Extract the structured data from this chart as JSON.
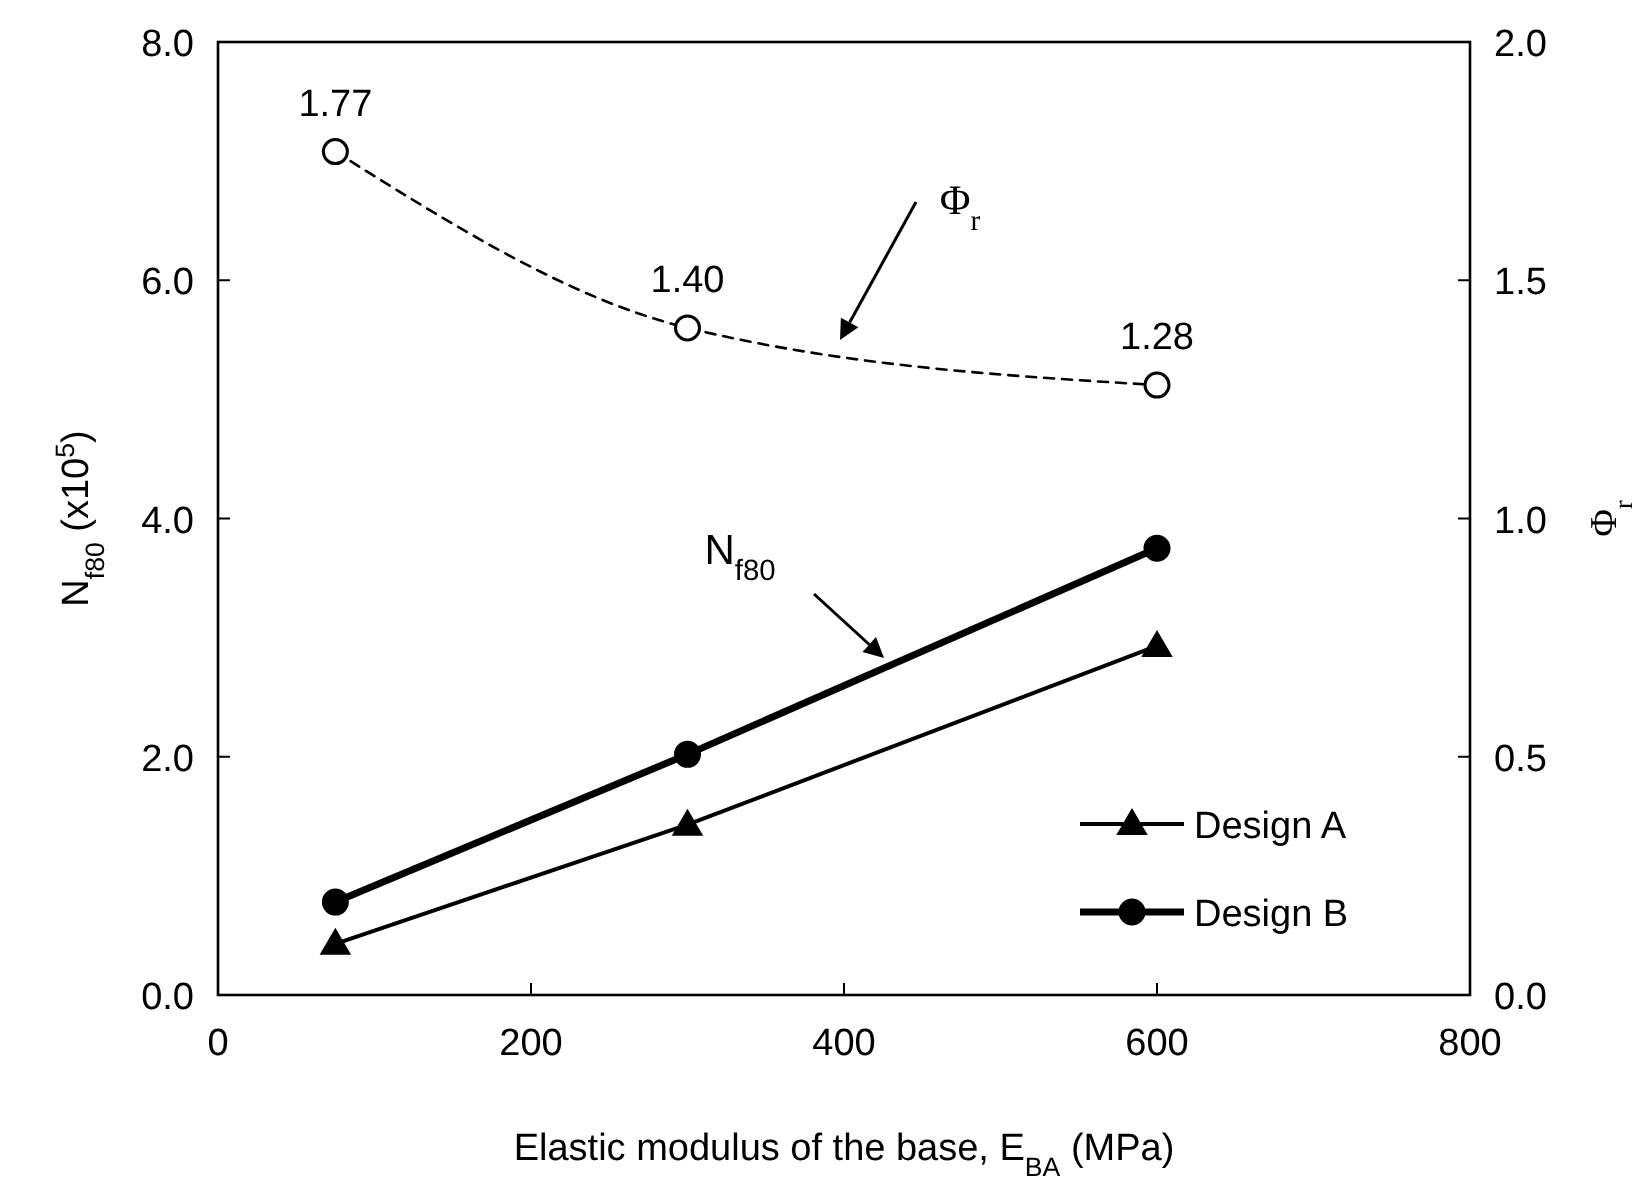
{
  "chart_data": {
    "type": "line",
    "xlabel": "Elastic modulus of the base, E$_{BA}$ (MPa)",
    "ylabel": "N$_{f80}$ (x10$^{5}$)",
    "y2label": "Φ$_{r}$",
    "x": [
      75,
      300,
      600
    ],
    "series": [
      {
        "name": "Design A",
        "color": "#000000",
        "values": [
          0.43,
          1.43,
          2.93
        ],
        "marker": "triangle",
        "line_style": "solid"
      },
      {
        "name": "Design B",
        "color": "#000000",
        "values": [
          0.78,
          2.02,
          3.75
        ],
        "marker": "circle",
        "line_style": "solid"
      },
      {
        "color": "#000000",
        "values": [
          1.77,
          1.4,
          1.28
        ],
        "axis": "y2",
        "marker": "circle",
        "line_style": "dashed",
        "value_labels": [
          "1.77",
          "1.40",
          "1.28"
        ]
      }
    ],
    "xlim": [
      0,
      800
    ],
    "xticks": [
      0,
      200,
      400,
      600,
      800
    ],
    "ylim": [
      0,
      8
    ],
    "yticks": [
      {
        "value": 0,
        "label": "0.0"
      },
      {
        "value": 2,
        "label": "2.0"
      },
      {
        "value": 4,
        "label": "4.0"
      },
      {
        "value": 6,
        "label": "6.0"
      },
      {
        "value": 8,
        "label": "8.0"
      }
    ],
    "y2lim": [
      0,
      2
    ],
    "y2ticks": [
      {
        "value": 0,
        "label": "0.0"
      },
      {
        "value": 0.5,
        "label": "0.5"
      },
      {
        "value": 1,
        "label": "1.0"
      },
      {
        "value": 1.5,
        "label": "1.5"
      },
      {
        "value": 2,
        "label": "2.0"
      }
    ],
    "annotations": [
      "Φ$_{r}$",
      "N$_{f80}$"
    ],
    "legend": "bottom right",
    "grid": false
  }
}
